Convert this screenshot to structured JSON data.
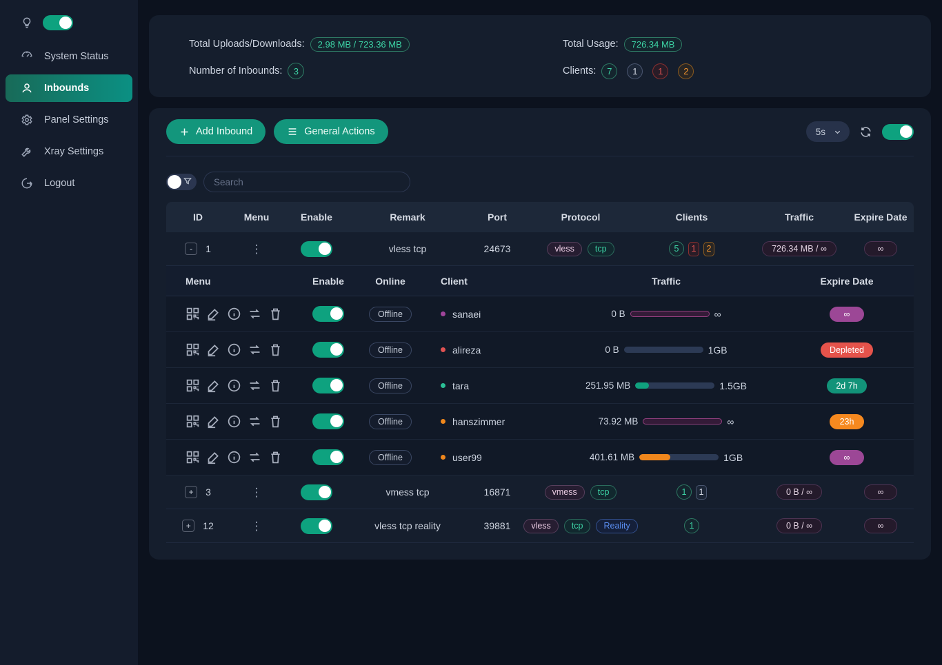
{
  "colors": {
    "accent_green": "#0ea27f",
    "button_green": "#13967c",
    "badge_green_text": "#3dd3a5",
    "magenta": "#9c4796",
    "red": "#e5534b",
    "teal": "#129379",
    "orange": "#f6891f",
    "card_bg": "#151e2d",
    "sidebar_bg": "#141c2c",
    "page_bg": "#0c121e"
  },
  "sidebar": {
    "items": [
      {
        "label": "System Status"
      },
      {
        "label": "Inbounds"
      },
      {
        "label": "Panel Settings"
      },
      {
        "label": "Xray Settings"
      },
      {
        "label": "Logout"
      }
    ],
    "theme_toggle_on": true
  },
  "stats": {
    "total_uploads_downloads_label": "Total Uploads/Downloads:",
    "total_uploads_downloads_value": "2.98 MB / 723.36 MB",
    "number_of_inbounds_label": "Number of Inbounds:",
    "number_of_inbounds_value": "3",
    "total_usage_label": "Total Usage:",
    "total_usage_value": "726.34 MB",
    "clients_label": "Clients:",
    "client_counts": [
      {
        "value": "7",
        "color": "green"
      },
      {
        "value": "1",
        "color": "gray"
      },
      {
        "value": "1",
        "color": "red"
      },
      {
        "value": "2",
        "color": "orange"
      }
    ]
  },
  "toolbar": {
    "add_inbound_label": "Add Inbound",
    "general_actions_label": "General Actions",
    "refresh_interval": "5s",
    "auto_refresh_on": true
  },
  "search": {
    "placeholder": "Search"
  },
  "table": {
    "headers": {
      "id": "ID",
      "menu": "Menu",
      "enable": "Enable",
      "remark": "Remark",
      "port": "Port",
      "protocol": "Protocol",
      "clients": "Clients",
      "traffic": "Traffic",
      "expire": "Expire Date"
    },
    "rows": [
      {
        "collapse": "-",
        "id": "1",
        "enabled": true,
        "remark": "vless tcp",
        "port": "24673",
        "protocols": [
          "vless",
          "tcp"
        ],
        "clients": [
          {
            "value": "5",
            "color": "green"
          },
          {
            "value": "1",
            "color": "red"
          },
          {
            "value": "2",
            "color": "orange"
          }
        ],
        "traffic": "726.34 MB / ∞",
        "expire": "∞"
      },
      {
        "collapse": "+",
        "id": "3",
        "enabled": true,
        "remark": "vmess tcp",
        "port": "16871",
        "protocols": [
          "vmess",
          "tcp"
        ],
        "clients": [
          {
            "value": "1",
            "color": "green"
          },
          {
            "value": "1",
            "color": "gray"
          }
        ],
        "traffic": "0 B / ∞",
        "expire": "∞"
      },
      {
        "collapse": "+",
        "id": "12",
        "enabled": true,
        "remark": "vless tcp reality",
        "port": "39881",
        "protocols": [
          "vless",
          "tcp",
          "Reality"
        ],
        "clients": [
          {
            "value": "1",
            "color": "green"
          }
        ],
        "traffic": "0 B / ∞",
        "expire": "∞"
      }
    ]
  },
  "client_table": {
    "headers": {
      "menu": "Menu",
      "enable": "Enable",
      "online": "Online",
      "client": "Client",
      "traffic": "Traffic",
      "expire": "Expire Date"
    },
    "rows": [
      {
        "online": "Offline",
        "enabled": true,
        "client": "sanaei",
        "dot_color": "#a0449a",
        "used": "0 B",
        "total": "∞",
        "pct": 100,
        "bar": "infinite",
        "expire": "∞",
        "expire_color": "magenta"
      },
      {
        "online": "Offline",
        "enabled": true,
        "client": "alireza",
        "dot_color": "#e05252",
        "used": "0 B",
        "total": "1GB",
        "pct": 0,
        "bar": "none",
        "expire": "Depleted",
        "expire_color": "red"
      },
      {
        "online": "Offline",
        "enabled": true,
        "client": "tara",
        "dot_color": "#2bbf96",
        "used": "251.95 MB",
        "total": "1.5GB",
        "pct": 17,
        "bar": "teal",
        "expire": "2d 7h",
        "expire_color": "teal"
      },
      {
        "online": "Offline",
        "enabled": true,
        "client": "hanszimmer",
        "dot_color": "#f0871c",
        "used": "73.92 MB",
        "total": "∞",
        "pct": 100,
        "bar": "infinite",
        "expire": "23h",
        "expire_color": "orange"
      },
      {
        "online": "Offline",
        "enabled": true,
        "client": "user99",
        "dot_color": "#f0871c",
        "used": "401.61 MB",
        "total": "1GB",
        "pct": 39,
        "bar": "orange",
        "expire": "∞",
        "expire_color": "magenta"
      }
    ]
  }
}
